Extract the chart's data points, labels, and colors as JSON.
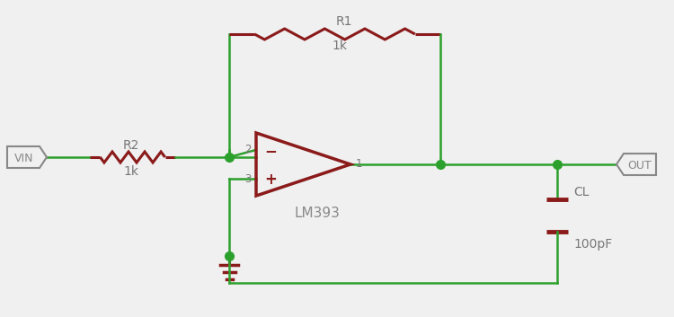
{
  "bg_color": "#f0f0f0",
  "wire_color": "#2ca02c",
  "component_color": "#8b1a1a",
  "label_color_gray": "#888888",
  "node_color": "#2ca02c",
  "terminal_edge_color": "#888888",
  "terminal_bg": "#f0f0f0",
  "wire_lw": 1.8,
  "component_lw": 2.2,
  "vin_label": "VIN",
  "out_label": "OUT",
  "r1_label": "R1",
  "r1_val": "1k",
  "r2_label": "R2",
  "r2_val": "1k",
  "cl_label": "CL",
  "cl_val": "100pF",
  "opamp_label": "LM393",
  "pin1": "1",
  "pin2": "2",
  "pin3": "3"
}
